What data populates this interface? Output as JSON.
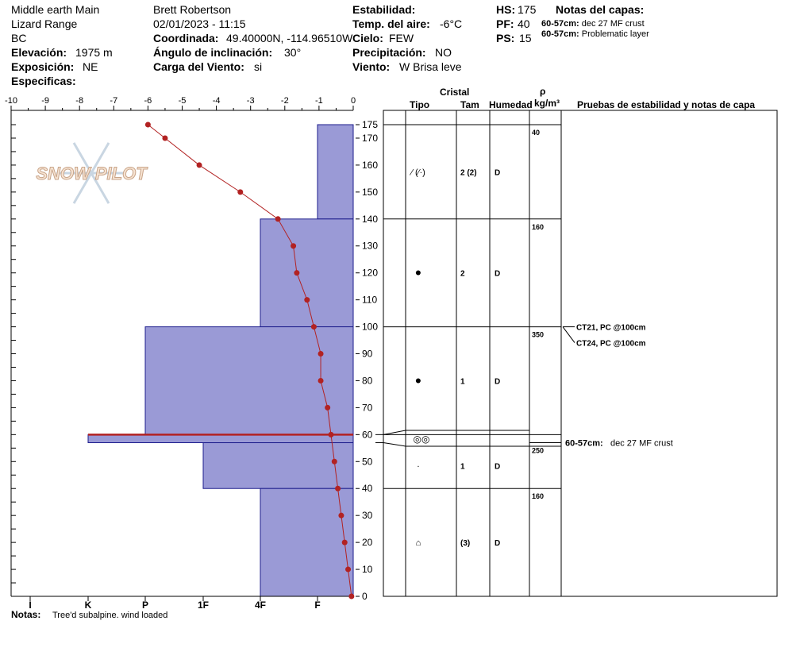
{
  "header": {
    "location": "Middle earth Main",
    "range": "Lizard Range",
    "region": "BC",
    "elevation_label": "Elevación:",
    "elevation_value": "1975 m",
    "aspect_label": "Exposición:",
    "aspect_value": "NE",
    "specifics_label": "Especificas:",
    "observer": "Brett Robertson",
    "datetime": "02/01/2023 - 11:15",
    "coord_label": "Coordinada:",
    "coord_value": "49.40000N, -114.96510W",
    "slope_label": "Ángulo de inclinación:",
    "slope_value": "30°",
    "wind_load_label": "Carga del Viento:",
    "wind_load_value": "si",
    "stability_label": "Estabilidad:",
    "air_temp_label": "Temp. del aire:",
    "air_temp_value": "-6°C",
    "sky_label": "Cielo:",
    "sky_value": "FEW",
    "precip_label": "Precipitación:",
    "precip_value": "NO",
    "wind_label": "Viento:",
    "wind_value": "W Brisa leve",
    "hs_label": "HS:",
    "hs_value": "175",
    "pf_label": "PF:",
    "pf_value": "40",
    "ps_label": "PS:",
    "ps_value": "15",
    "layer_notes_title": "Notas del capas:",
    "layer_notes": [
      {
        "range": "60-57cm:",
        "text": "dec 27 MF crust"
      },
      {
        "range": "60-57cm:",
        "text": "Problematic layer"
      }
    ]
  },
  "columns": {
    "crystal": "Cristal",
    "type": "Tipo",
    "size": "Tam",
    "moisture": "Humedad",
    "rho": "ρ",
    "density_unit": "kg/m³",
    "tests_title": "Pruebas de estabilidad y notas de capa"
  },
  "footer": {
    "notes_label": "Notas:",
    "notes_text": "Tree'd subalpine. wind loaded"
  },
  "logo_text": "SNOW PILOT",
  "colors": {
    "hardness_fill": "#9a9ad6",
    "hardness_stroke": "#1c1c8c",
    "temp_line": "#b22222",
    "crust": "#b22222"
  },
  "chart_data": {
    "type": "area",
    "height_axis": {
      "label": "",
      "ticks": [
        0,
        10,
        20,
        30,
        40,
        50,
        60,
        70,
        80,
        90,
        100,
        110,
        120,
        130,
        140,
        150,
        160,
        170,
        175
      ],
      "ylim": [
        0,
        175
      ]
    },
    "temp_axis": {
      "ticks": [
        "-10",
        "-9",
        "-8",
        "-7",
        "-6",
        "-5",
        "-4",
        "-3",
        "-2",
        "-1",
        "0"
      ],
      "xlim": [
        -10,
        0
      ]
    },
    "hardness_axis": {
      "ticks": [
        "I",
        "K",
        "P",
        "1F",
        "4F",
        "F"
      ]
    },
    "hardness_profile": [
      {
        "top": 175,
        "bottom": 140,
        "hardness": "F"
      },
      {
        "top": 140,
        "bottom": 100,
        "hardness": "4F"
      },
      {
        "top": 100,
        "bottom": 60,
        "hardness": "P"
      },
      {
        "top": 60,
        "bottom": 57,
        "hardness": "K+"
      },
      {
        "top": 57,
        "bottom": 40,
        "hardness": "1F"
      },
      {
        "top": 40,
        "bottom": 0,
        "hardness": "4F"
      }
    ],
    "crust_height": 60,
    "temperature_profile": [
      {
        "height": 175,
        "temp": -6.0
      },
      {
        "height": 170,
        "temp": -5.5
      },
      {
        "height": 160,
        "temp": -4.5
      },
      {
        "height": 150,
        "temp": -3.3
      },
      {
        "height": 140,
        "temp": -2.2
      },
      {
        "height": 130,
        "temp": -1.75
      },
      {
        "height": 120,
        "temp": -1.65
      },
      {
        "height": 110,
        "temp": -1.35
      },
      {
        "height": 100,
        "temp": -1.15
      },
      {
        "height": 90,
        "temp": -0.95
      },
      {
        "height": 80,
        "temp": -0.95
      },
      {
        "height": 70,
        "temp": -0.75
      },
      {
        "height": 60,
        "temp": -0.65
      },
      {
        "height": 50,
        "temp": -0.55
      },
      {
        "height": 40,
        "temp": -0.45
      },
      {
        "height": 30,
        "temp": -0.35
      },
      {
        "height": 20,
        "temp": -0.25
      },
      {
        "height": 10,
        "temp": -0.15
      },
      {
        "height": 0,
        "temp": -0.05
      }
    ],
    "layers": [
      {
        "top": 175,
        "bottom": 140,
        "grain_icon": "decomposing-fragments-symbol",
        "grain_text": "⁄ (⁄·)",
        "size": "2 (2)",
        "moisture": "D",
        "density": "40"
      },
      {
        "top": 140,
        "bottom": 100,
        "grain_icon": "rounded-grains-dot",
        "grain_text": "●",
        "size": "2",
        "moisture": "D",
        "density": "160"
      },
      {
        "top": 100,
        "bottom": 60,
        "grain_icon": "rounded-grains-dot",
        "grain_text": "●",
        "size": "1",
        "moisture": "D",
        "density": "350"
      },
      {
        "top": 60,
        "bottom": 57,
        "grain_icon": "melt-freeze-crust-symbol",
        "grain_text": "◎◎",
        "size": "",
        "moisture": "",
        "density": ""
      },
      {
        "top": 57,
        "bottom": 40,
        "grain_icon": "small-rounds-dot",
        "grain_text": "·",
        "size": "1",
        "moisture": "D",
        "density": "250"
      },
      {
        "top": 40,
        "bottom": 0,
        "grain_icon": "faceted-grains-symbol",
        "grain_text": "⌂",
        "size": "(3)",
        "moisture": "D",
        "density": "160"
      }
    ],
    "stability_tests": [
      {
        "text": "CT21, PC @100cm",
        "height": 100
      },
      {
        "text": "CT24, PC @100cm",
        "height": 100
      }
    ],
    "layer_annotation": {
      "range": "60-57cm:",
      "text": "dec 27 MF crust",
      "height": 57
    }
  }
}
